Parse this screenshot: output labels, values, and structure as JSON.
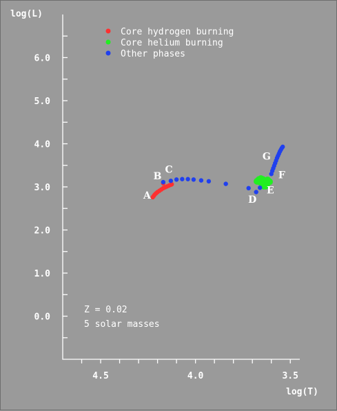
{
  "chart_data": {
    "type": "scatter",
    "xlabel": "log(T)",
    "ylabel": "log(L)",
    "xlim": [
      4.7,
      3.45
    ],
    "ylim": [
      -1.0,
      7.0
    ],
    "x_reversed": true,
    "x_ticks": [
      4.5,
      4.0,
      3.5
    ],
    "y_ticks": [
      0.0,
      1.0,
      2.0,
      3.0,
      4.0,
      5.0,
      6.0
    ],
    "x_tick_labels": [
      "4.5",
      "4.0",
      "3.5"
    ],
    "y_tick_labels": [
      "0.0",
      "1.0",
      "2.0",
      "3.0",
      "4.0",
      "5.0",
      "6.0"
    ],
    "legend_placement": "top",
    "series": [
      {
        "name": "Core hydrogen burning",
        "color": "#ff3030",
        "points": [
          [
            4.225,
            2.76
          ],
          [
            4.22,
            2.79
          ],
          [
            4.215,
            2.82
          ],
          [
            4.208,
            2.85
          ],
          [
            4.2,
            2.88
          ],
          [
            4.19,
            2.91
          ],
          [
            4.18,
            2.94
          ],
          [
            4.17,
            2.97
          ],
          [
            4.16,
            2.99
          ],
          [
            4.15,
            3.01
          ],
          [
            4.14,
            3.03
          ],
          [
            4.13,
            3.05
          ],
          [
            4.125,
            3.06
          ],
          [
            4.17,
            3.08
          ]
        ]
      },
      {
        "name": "Core helium burning",
        "color": "#22ee22",
        "points": [
          [
            3.675,
            3.13
          ],
          [
            3.665,
            3.17
          ],
          [
            3.655,
            3.19
          ],
          [
            3.645,
            3.17
          ],
          [
            3.64,
            3.13
          ],
          [
            3.63,
            3.09
          ],
          [
            3.625,
            3.05
          ],
          [
            3.63,
            3.02
          ],
          [
            3.64,
            3.02
          ],
          [
            3.62,
            3.16
          ],
          [
            3.61,
            3.12
          ],
          [
            3.655,
            3.1
          ]
        ]
      },
      {
        "name": "Other phases",
        "color": "#2040ee",
        "points": [
          [
            4.17,
            3.11
          ],
          [
            4.13,
            3.14
          ],
          [
            4.1,
            3.17
          ],
          [
            4.07,
            3.18
          ],
          [
            4.04,
            3.18
          ],
          [
            4.01,
            3.17
          ],
          [
            3.97,
            3.15
          ],
          [
            3.93,
            3.13
          ],
          [
            3.84,
            3.07
          ],
          [
            3.72,
            2.97
          ],
          [
            3.68,
            2.88
          ],
          [
            3.66,
            2.98
          ],
          [
            3.6,
            3.3
          ],
          [
            3.595,
            3.37
          ],
          [
            3.59,
            3.43
          ],
          [
            3.585,
            3.49
          ],
          [
            3.58,
            3.55
          ],
          [
            3.575,
            3.61
          ],
          [
            3.57,
            3.67
          ],
          [
            3.565,
            3.72
          ],
          [
            3.56,
            3.77
          ],
          [
            3.555,
            3.82
          ],
          [
            3.55,
            3.86
          ],
          [
            3.545,
            3.9
          ],
          [
            3.54,
            3.93
          ]
        ]
      }
    ],
    "annotations": [
      {
        "text": "A",
        "x": 4.255,
        "y": 2.73
      },
      {
        "text": "B",
        "x": 4.2,
        "y": 3.18
      },
      {
        "text": "C",
        "x": 4.14,
        "y": 3.33
      },
      {
        "text": "D",
        "x": 3.7,
        "y": 2.63
      },
      {
        "text": "E",
        "x": 3.605,
        "y": 2.85
      },
      {
        "text": "F",
        "x": 3.545,
        "y": 3.2
      },
      {
        "text": "G",
        "x": 3.625,
        "y": 3.63
      }
    ],
    "notes": [
      "Z = 0.02",
      "5 solar masses"
    ]
  }
}
